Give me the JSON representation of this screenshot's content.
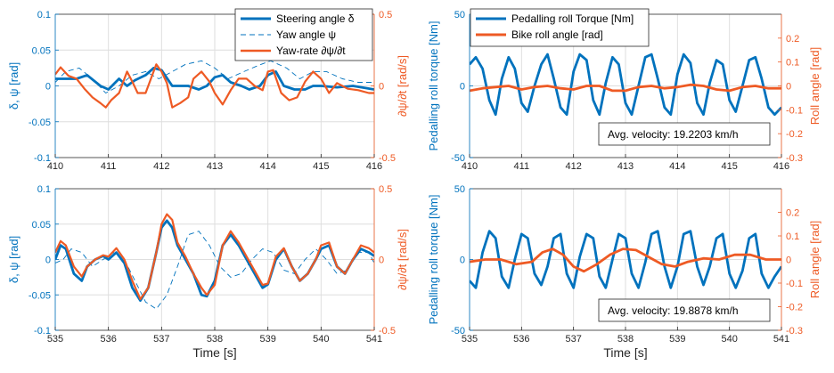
{
  "colors": {
    "blue": "#0072BD",
    "orange": "#EE5A24",
    "axis": "#262626",
    "grid": "#dedede"
  },
  "chart_data": [
    {
      "type": "line",
      "grid": true,
      "legend_placement": "top-right",
      "xlim": [
        410,
        416
      ],
      "xticks": [
        "410",
        "411",
        "412",
        "413",
        "414",
        "415",
        "416"
      ],
      "xlabel": "",
      "ylabel": "δ, ψ [rad]",
      "ylim": [
        -0.1,
        0.1
      ],
      "yticks": [
        "-0.1",
        "-0.05",
        "0",
        "0.05",
        "0.1"
      ],
      "ylabel_right": "∂ψ/∂t [rad/s]",
      "ylim_right": [
        -0.5,
        0.5
      ],
      "yticks_right": [
        "-0.5",
        "0",
        "0.5"
      ],
      "series": [
        {
          "name": "Steering angle δ",
          "axis": "left",
          "style": "solid-thick",
          "color": "#0072BD",
          "x": [
            410,
            410.4,
            410.6,
            410.85,
            411.0,
            411.2,
            411.35,
            411.5,
            411.7,
            411.85,
            412.0,
            412.2,
            412.35,
            412.5,
            412.7,
            412.85,
            413.0,
            413.15,
            413.3,
            413.5,
            413.65,
            413.85,
            414.0,
            414.15,
            414.3,
            414.5,
            414.7,
            414.85,
            415.0,
            415.3,
            415.6,
            416
          ],
          "y": [
            0.01,
            0.01,
            0.015,
            0.0,
            -0.005,
            0.01,
            0.0,
            0.008,
            0.015,
            0.025,
            0.022,
            0.0,
            0.0,
            0.0,
            -0.005,
            0.0,
            0.012,
            0.015,
            0.005,
            0.0,
            -0.005,
            0.0,
            0.015,
            0.02,
            0.0,
            -0.005,
            -0.005,
            0.0,
            0.0,
            -0.002,
            0.0,
            -0.005
          ]
        },
        {
          "name": "Yaw angle ψ",
          "axis": "left",
          "style": "dashed-thin",
          "color": "#0072BD",
          "x": [
            410,
            410.2,
            410.45,
            410.7,
            410.95,
            411.2,
            411.45,
            411.7,
            411.95,
            412.2,
            412.45,
            412.75,
            413.0,
            413.25,
            413.55,
            413.8,
            414.05,
            414.35,
            414.6,
            414.85,
            415.1,
            415.4,
            415.7,
            416
          ],
          "y": [
            0.005,
            0.02,
            0.025,
            0.01,
            -0.01,
            0.0,
            0.015,
            0.02,
            0.01,
            0.02,
            0.03,
            0.035,
            0.025,
            0.01,
            0.02,
            0.028,
            0.035,
            0.025,
            0.01,
            0.02,
            0.02,
            0.01,
            0.005,
            0.005
          ]
        },
        {
          "name": "Yaw-rate ∂ψ/∂t",
          "axis": "right",
          "style": "solid",
          "color": "#EE5A24",
          "x": [
            410,
            410.1,
            410.25,
            410.4,
            410.55,
            410.7,
            410.85,
            410.95,
            411.05,
            411.2,
            411.35,
            411.45,
            411.55,
            411.7,
            411.8,
            411.9,
            412.0,
            412.1,
            412.2,
            412.35,
            412.5,
            412.6,
            412.75,
            412.9,
            413.0,
            413.15,
            413.3,
            413.45,
            413.6,
            413.75,
            413.9,
            414.0,
            414.1,
            414.25,
            414.4,
            414.55,
            414.7,
            414.85,
            415.0,
            415.15,
            415.3,
            415.5,
            415.7,
            415.9,
            416
          ],
          "y": [
            0.08,
            0.13,
            0.07,
            0.05,
            -0.02,
            -0.08,
            -0.12,
            -0.15,
            -0.1,
            -0.05,
            0.1,
            0.03,
            -0.05,
            -0.05,
            0.05,
            0.15,
            0.1,
            0.02,
            -0.15,
            -0.12,
            -0.08,
            0.05,
            0.1,
            0.03,
            -0.05,
            -0.13,
            -0.03,
            0.05,
            0.05,
            0.0,
            -0.03,
            0.1,
            0.11,
            -0.05,
            -0.1,
            -0.08,
            0.03,
            0.1,
            0.05,
            -0.05,
            0.02,
            -0.02,
            -0.03,
            -0.05,
            -0.05
          ]
        }
      ]
    },
    {
      "type": "line",
      "grid": true,
      "legend_placement": "top-left",
      "annotation": "Avg. velocity: 19.2203 km/h",
      "xlim": [
        410,
        416
      ],
      "xticks": [
        "410",
        "411",
        "412",
        "413",
        "414",
        "415",
        "416"
      ],
      "xlabel": "",
      "ylabel": "Pedalling roll torque [Nm]",
      "ylim": [
        -50,
        50
      ],
      "yticks": [
        "-50",
        "0",
        "50"
      ],
      "ylabel_right": "Roll angle [rad]",
      "ylim_right": [
        -0.3,
        0.3
      ],
      "yticks_right": [
        "-0.3",
        "-0.2",
        "-0.1",
        "0",
        "0.1",
        "0.2"
      ],
      "series": [
        {
          "name": "Pedalling roll Torque [Nm]",
          "axis": "left",
          "style": "solid-thick",
          "color": "#0072BD",
          "x": [
            410.0,
            410.12,
            410.25,
            410.38,
            410.5,
            410.62,
            410.75,
            410.87,
            411.0,
            411.12,
            411.25,
            411.38,
            411.5,
            411.62,
            411.75,
            411.87,
            412.0,
            412.12,
            412.25,
            412.38,
            412.5,
            412.62,
            412.75,
            412.87,
            413.0,
            413.12,
            413.25,
            413.38,
            413.5,
            413.62,
            413.75,
            413.87,
            414.0,
            414.12,
            414.25,
            414.38,
            414.5,
            414.62,
            414.75,
            414.87,
            415.0,
            415.12,
            415.25,
            415.38,
            415.5,
            415.62,
            415.75,
            415.87,
            416.0
          ],
          "y": [
            15,
            20,
            12,
            -10,
            -20,
            5,
            20,
            12,
            -12,
            -18,
            0,
            15,
            22,
            5,
            -15,
            -20,
            10,
            22,
            18,
            -10,
            -20,
            2,
            20,
            15,
            -12,
            -20,
            0,
            20,
            22,
            5,
            -15,
            -20,
            8,
            22,
            16,
            -12,
            -20,
            2,
            18,
            15,
            -10,
            -18,
            0,
            18,
            20,
            5,
            -15,
            -20,
            -15
          ]
        },
        {
          "name": "Bike roll angle [rad]",
          "axis": "right",
          "style": "solid-thick",
          "color": "#EE5A24",
          "x": [
            410.0,
            410.25,
            410.5,
            410.75,
            411.0,
            411.25,
            411.5,
            411.75,
            412.0,
            412.25,
            412.5,
            412.75,
            413.0,
            413.25,
            413.5,
            413.75,
            414.0,
            414.25,
            414.5,
            414.75,
            415.0,
            415.25,
            415.5,
            415.75,
            416.0
          ],
          "y": [
            -0.02,
            -0.01,
            -0.005,
            0.0,
            -0.015,
            -0.005,
            0.0,
            -0.01,
            -0.015,
            0.0,
            0.0,
            -0.02,
            -0.02,
            -0.005,
            0.0,
            -0.01,
            -0.005,
            0.005,
            0.0,
            -0.015,
            -0.02,
            -0.005,
            0.0,
            -0.01,
            -0.01
          ]
        }
      ]
    },
    {
      "type": "line",
      "grid": true,
      "xlim": [
        535,
        541
      ],
      "xticks": [
        "535",
        "536",
        "537",
        "538",
        "539",
        "540",
        "541"
      ],
      "xlabel": "Time [s]",
      "ylabel": "δ, ψ [rad]",
      "ylim": [
        -0.1,
        0.1
      ],
      "yticks": [
        "-0.1",
        "-0.05",
        "0",
        "0.05",
        "0.1"
      ],
      "ylabel_right": "∂ψ/∂t [rad/s]",
      "ylim_right": [
        -0.5,
        0.5
      ],
      "yticks_right": [
        "-0.5",
        "0",
        "0.5"
      ],
      "series": [
        {
          "name": "Steering angle δ",
          "axis": "left",
          "style": "solid-thick",
          "color": "#0072BD",
          "x": [
            535.0,
            535.1,
            535.2,
            535.35,
            535.5,
            535.6,
            535.75,
            535.9,
            536.0,
            536.15,
            536.3,
            536.45,
            536.6,
            536.75,
            536.9,
            537.0,
            537.1,
            537.2,
            537.3,
            537.45,
            537.6,
            537.75,
            537.85,
            538.0,
            538.15,
            538.3,
            538.45,
            538.6,
            538.75,
            538.9,
            539.0,
            539.15,
            539.3,
            539.45,
            539.6,
            539.75,
            539.9,
            540.0,
            540.15,
            540.3,
            540.45,
            540.6,
            540.75,
            540.9,
            541.0
          ],
          "y": [
            0.0,
            0.02,
            0.015,
            -0.02,
            -0.03,
            -0.01,
            0.0,
            0.005,
            0.0,
            0.01,
            -0.005,
            -0.04,
            -0.058,
            -0.04,
            0.01,
            0.045,
            0.055,
            0.045,
            0.02,
            0.0,
            -0.02,
            -0.05,
            -0.052,
            -0.03,
            0.02,
            0.035,
            0.02,
            0.0,
            -0.02,
            -0.04,
            -0.035,
            0.0,
            0.015,
            -0.01,
            -0.03,
            -0.02,
            0.0,
            0.015,
            0.02,
            -0.01,
            -0.02,
            0.0,
            0.015,
            0.01,
            0.005
          ]
        },
        {
          "name": "Yaw angle ψ",
          "axis": "left",
          "style": "dashed-thin",
          "color": "#0072BD",
          "x": [
            535.0,
            535.15,
            535.3,
            535.5,
            535.7,
            535.9,
            536.1,
            536.3,
            536.5,
            536.7,
            536.9,
            537.1,
            537.3,
            537.5,
            537.7,
            537.9,
            538.1,
            538.3,
            538.5,
            538.7,
            538.9,
            539.1,
            539.3,
            539.5,
            539.7,
            539.9,
            540.1,
            540.3,
            540.5,
            540.7,
            540.9,
            541.0
          ],
          "y": [
            -0.005,
            0.0,
            0.015,
            0.01,
            -0.01,
            0.0,
            0.01,
            0.0,
            -0.03,
            -0.06,
            -0.07,
            -0.05,
            -0.01,
            0.035,
            0.04,
            0.02,
            -0.01,
            -0.025,
            -0.02,
            0.0,
            0.015,
            0.01,
            -0.015,
            -0.02,
            0.0,
            0.015,
            0.0,
            -0.02,
            -0.015,
            0.01,
            0.01,
            -0.005
          ]
        },
        {
          "name": "Yaw-rate ∂ψ/∂t",
          "axis": "right",
          "style": "solid",
          "color": "#EE5A24",
          "x": [
            535.0,
            535.1,
            535.2,
            535.35,
            535.5,
            535.6,
            535.75,
            535.9,
            536.0,
            536.15,
            536.3,
            536.45,
            536.6,
            536.75,
            536.9,
            537.0,
            537.1,
            537.2,
            537.3,
            537.45,
            537.6,
            537.75,
            537.85,
            538.0,
            538.15,
            538.3,
            538.45,
            538.6,
            538.75,
            538.9,
            539.0,
            539.15,
            539.3,
            539.45,
            539.6,
            539.75,
            539.9,
            540.0,
            540.15,
            540.3,
            540.45,
            540.6,
            540.75,
            540.9,
            541.0
          ],
          "y": [
            0.05,
            0.13,
            0.1,
            -0.05,
            -0.12,
            -0.05,
            0.0,
            0.03,
            0.02,
            0.08,
            0.0,
            -0.15,
            -0.28,
            -0.2,
            0.05,
            0.25,
            0.32,
            0.28,
            0.12,
            0.02,
            -0.1,
            -0.2,
            -0.25,
            -0.18,
            0.1,
            0.2,
            0.12,
            0.02,
            -0.08,
            -0.18,
            -0.17,
            0.02,
            0.08,
            -0.05,
            -0.15,
            -0.1,
            0.0,
            0.1,
            0.12,
            -0.05,
            -0.1,
            0.0,
            0.1,
            0.08,
            0.05
          ]
        }
      ]
    },
    {
      "type": "line",
      "grid": true,
      "annotation": "Avg. velocity: 19.8878 km/h",
      "xlim": [
        535,
        541
      ],
      "xticks": [
        "535",
        "536",
        "537",
        "538",
        "539",
        "540",
        "541"
      ],
      "xlabel": "Time [s]",
      "ylabel": "Pedalling roll torque [Nm]",
      "ylim": [
        -50,
        50
      ],
      "yticks": [
        "-50",
        "0",
        "50"
      ],
      "ylabel_right": "Roll angle [rad]",
      "ylim_right": [
        -0.3,
        0.3
      ],
      "yticks_right": [
        "-0.3",
        "-0.2",
        "-0.1",
        "0",
        "0.1",
        "0.2"
      ],
      "series": [
        {
          "name": "Pedalling roll Torque [Nm]",
          "axis": "left",
          "style": "solid-thick",
          "color": "#0072BD",
          "x": [
            535.0,
            535.12,
            535.25,
            535.38,
            535.5,
            535.62,
            535.75,
            535.87,
            536.0,
            536.12,
            536.25,
            536.38,
            536.5,
            536.62,
            536.75,
            536.87,
            537.0,
            537.12,
            537.25,
            537.38,
            537.5,
            537.62,
            537.75,
            537.87,
            538.0,
            538.12,
            538.25,
            538.38,
            538.5,
            538.62,
            538.75,
            538.87,
            539.0,
            539.12,
            539.25,
            539.38,
            539.5,
            539.62,
            539.75,
            539.87,
            540.0,
            540.12,
            540.25,
            540.38,
            540.5,
            540.62,
            540.75,
            540.87,
            541.0
          ],
          "y": [
            -15,
            -20,
            5,
            20,
            15,
            -12,
            -20,
            0,
            18,
            15,
            -10,
            -18,
            -5,
            15,
            18,
            -10,
            -20,
            2,
            18,
            15,
            -12,
            -20,
            0,
            18,
            15,
            -10,
            -20,
            -2,
            18,
            20,
            -5,
            -20,
            -5,
            18,
            20,
            -5,
            -18,
            -5,
            15,
            18,
            -10,
            -20,
            -8,
            15,
            18,
            -10,
            -20,
            -12,
            -5
          ]
        },
        {
          "name": "Bike roll angle [rad]",
          "axis": "right",
          "style": "solid-thick",
          "color": "#EE5A24",
          "x": [
            535.0,
            535.3,
            535.6,
            535.9,
            536.2,
            536.4,
            536.6,
            536.8,
            537.0,
            537.2,
            537.45,
            537.7,
            537.95,
            538.2,
            538.45,
            538.7,
            538.95,
            539.2,
            539.5,
            539.8,
            540.1,
            540.4,
            540.7,
            541.0
          ],
          "y": [
            -0.01,
            0.0,
            0.0,
            -0.02,
            -0.01,
            0.03,
            0.045,
            0.02,
            -0.03,
            -0.05,
            -0.02,
            0.02,
            0.045,
            0.04,
            0.01,
            -0.02,
            -0.03,
            -0.01,
            0.005,
            0.0,
            0.02,
            0.02,
            0.0,
            0.0
          ]
        }
      ]
    }
  ]
}
